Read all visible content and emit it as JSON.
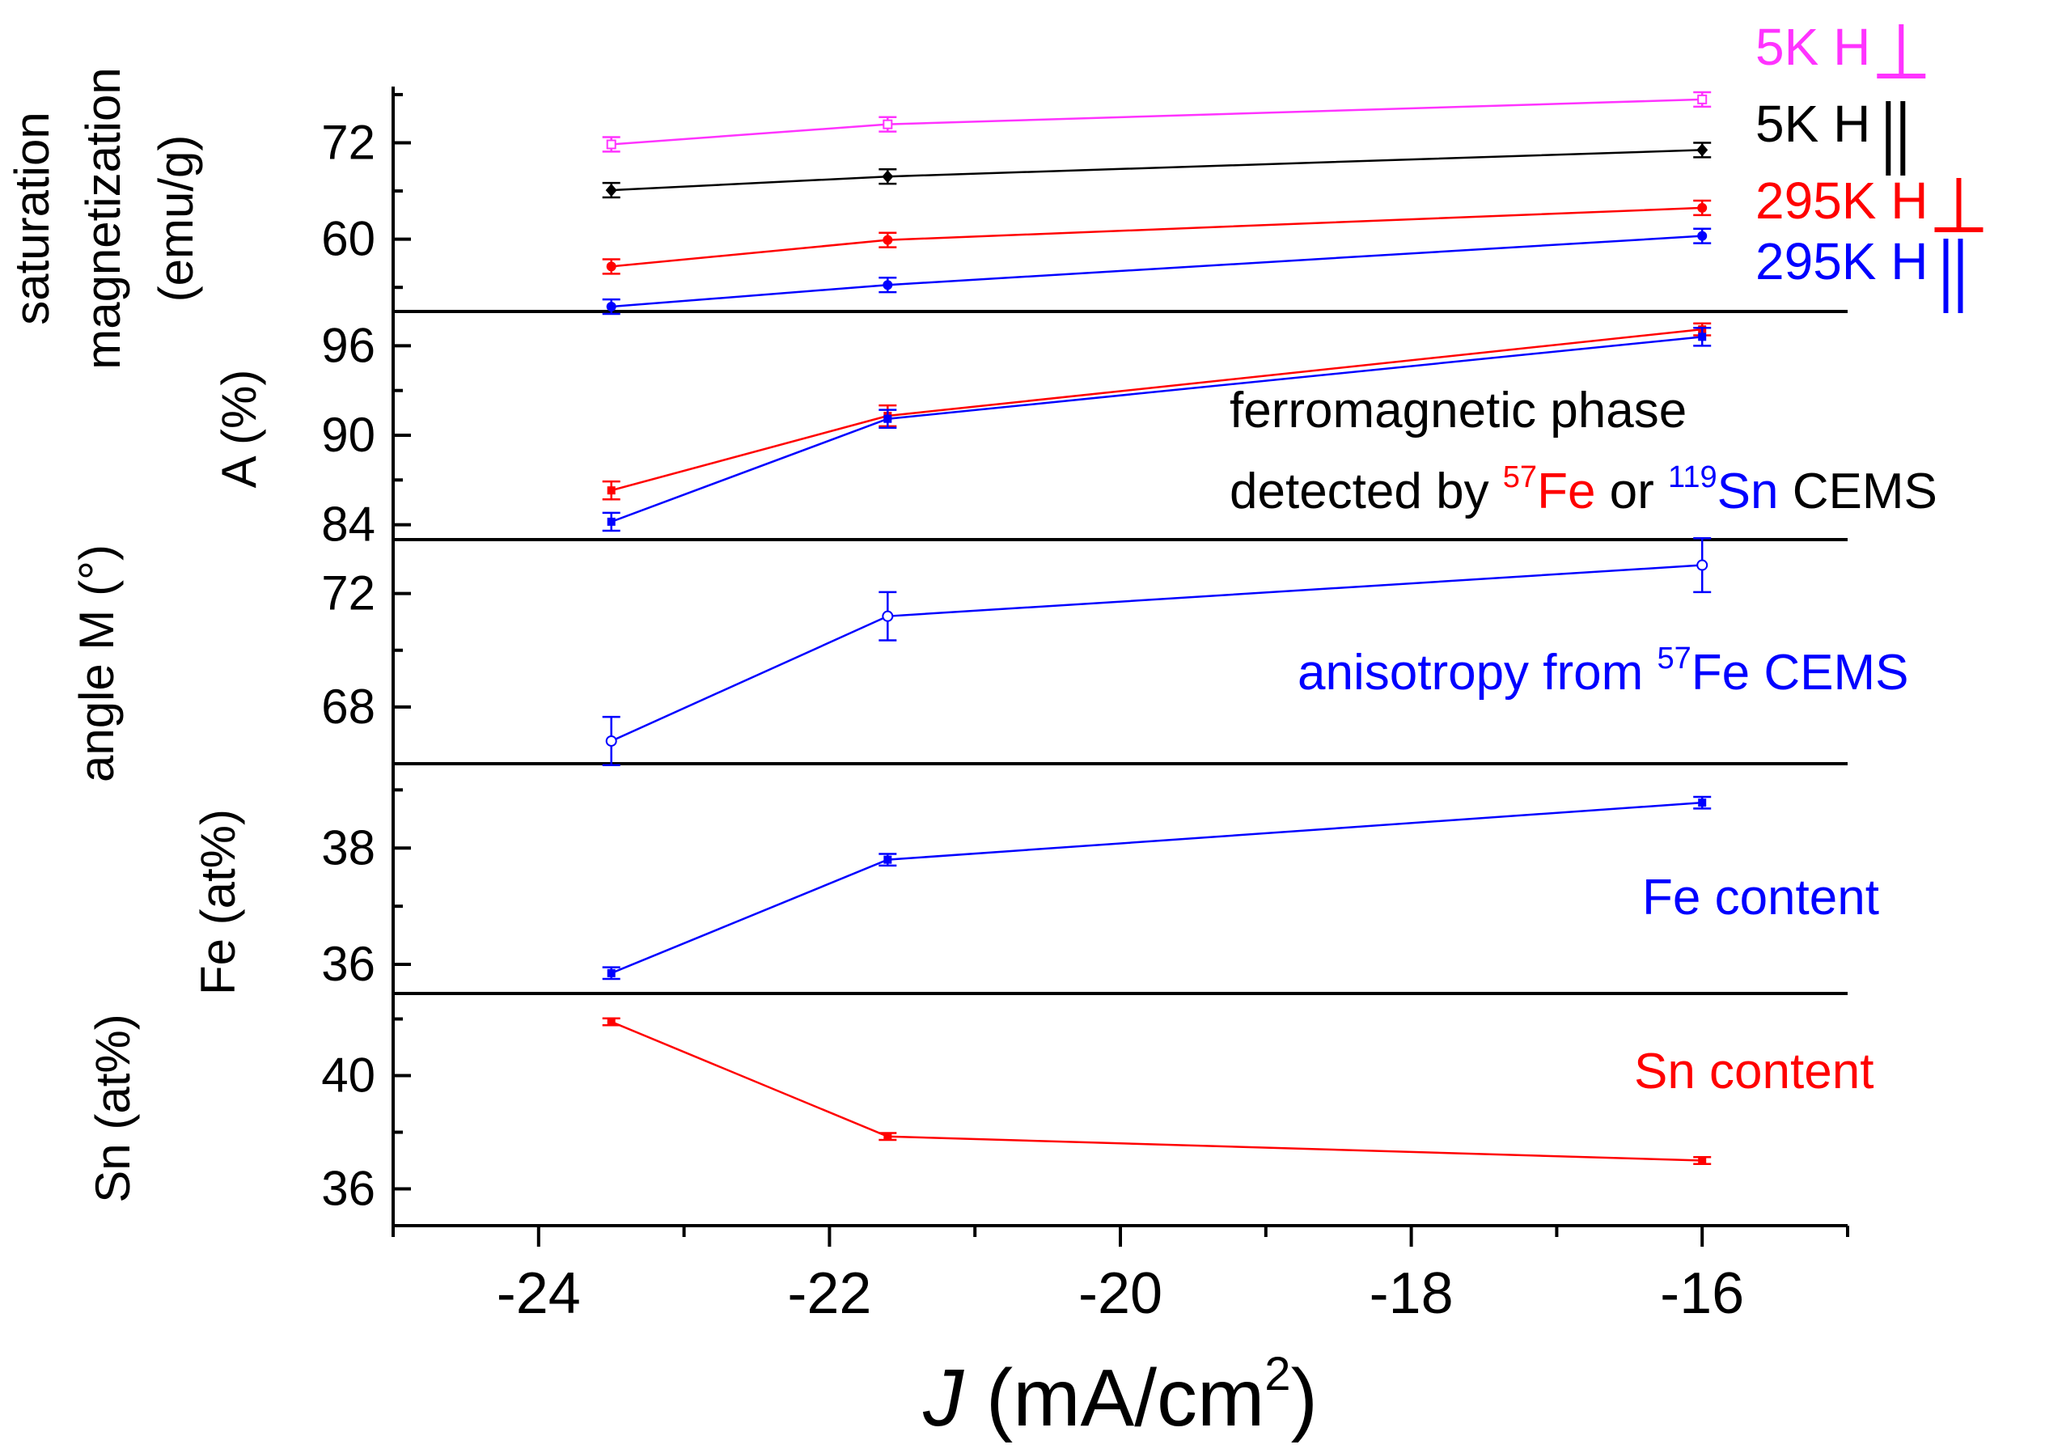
{
  "chart_data": {
    "type": "line",
    "x_axis": {
      "label_italic": "J",
      "label_rest": " (mA/cm",
      "label_sup": "2",
      "label_close": ")",
      "xlim": [
        -25,
        -15
      ],
      "major_ticks": [
        -24,
        -22,
        -20,
        -18,
        -16
      ],
      "tick_labels": [
        "-24",
        "-22",
        "-20",
        "-18",
        "-16"
      ]
    },
    "panels": [
      {
        "id": "sat",
        "ylabel_lines": [
          "saturation",
          "magnetization",
          "(emu/g)"
        ],
        "ylim": [
          51,
          79
        ],
        "yticks": [
          60,
          72
        ],
        "ytick_labels": [
          "60",
          "72"
        ],
        "series": [
          {
            "name": "5K H perpendicular",
            "color": "#ff33ff",
            "marker": "open-square",
            "x": [
              -23.5,
              -21.6,
              -16.0
            ],
            "y": [
              71.8,
              74.3,
              77.4
            ],
            "err": [
              0.9,
              0.9,
              0.9
            ]
          },
          {
            "name": "5K H parallel",
            "color": "#000000",
            "marker": "diamond",
            "x": [
              -23.5,
              -21.6,
              -16.0
            ],
            "y": [
              66.1,
              67.8,
              71.1
            ],
            "err": [
              0.9,
              0.9,
              0.9
            ]
          },
          {
            "name": "295K H perpendicular",
            "color": "#ff0000",
            "marker": "dot",
            "x": [
              -23.5,
              -21.6,
              -16.0
            ],
            "y": [
              56.6,
              59.9,
              63.9
            ],
            "err": [
              0.9,
              0.9,
              0.9
            ]
          },
          {
            "name": "295K H parallel",
            "color": "#0000ff",
            "marker": "dot",
            "x": [
              -23.5,
              -21.6,
              -16.0
            ],
            "y": [
              51.6,
              54.3,
              60.4
            ],
            "err": [
              0.9,
              0.9,
              0.9
            ]
          }
        ],
        "legend": [
          {
            "text": "5K H",
            "color": "#ff33ff",
            "symbol": "perp"
          },
          {
            "text": "5K H",
            "color": "#000000",
            "symbol": "par"
          },
          {
            "text": "295K H",
            "color": "#ff0000",
            "symbol": "perp"
          },
          {
            "text": "295K H",
            "color": "#0000ff",
            "symbol": "par"
          }
        ]
      },
      {
        "id": "A",
        "ylabel_lines": [
          "A (%)"
        ],
        "ylim": [
          83.0,
          98.3
        ],
        "yticks": [
          84,
          90,
          96
        ],
        "ytick_labels": [
          "84",
          "90",
          "96"
        ],
        "series": [
          {
            "name": "57Fe",
            "color": "#ff0000",
            "marker": "square",
            "x": [
              -23.5,
              -21.6,
              -16.0
            ],
            "y": [
              86.3,
              91.3,
              97.1
            ],
            "err": [
              0.6,
              0.7,
              0.4
            ]
          },
          {
            "name": "119Sn",
            "color": "#0000ff",
            "marker": "square",
            "x": [
              -23.5,
              -21.6,
              -16.0
            ],
            "y": [
              84.2,
              91.1,
              96.6
            ],
            "err": [
              0.6,
              0.6,
              0.6
            ]
          }
        ],
        "annotation": {
          "line1": "ferromagnetic phase",
          "line2_a": "detected by ",
          "sup_fe": "57",
          "fe": "Fe",
          "or": " or ",
          "sup_sn": "119",
          "sn": "Sn",
          "cems": " CEMS"
        }
      },
      {
        "id": "angle",
        "ylabel_lines": [
          "angle M (°)"
        ],
        "ylim": [
          66.0,
          73.9
        ],
        "yticks": [
          68,
          72
        ],
        "ytick_labels": [
          "68",
          "72"
        ],
        "series": [
          {
            "name": "angle",
            "color": "#0000ff",
            "marker": "open-circle",
            "x": [
              -23.5,
              -21.6,
              -16.0
            ],
            "y": [
              66.8,
              71.2,
              73.0
            ],
            "err": [
              0.85,
              0.85,
              0.95
            ]
          }
        ],
        "annotation": {
          "pre": "anisotropy from ",
          "sup": "57",
          "post": "Fe  CEMS"
        }
      },
      {
        "id": "fe",
        "ylabel_lines": [
          "Fe (at%)"
        ],
        "ylim": [
          35.5,
          39.45
        ],
        "yticks": [
          36,
          38
        ],
        "ytick_labels": [
          "36",
          "38"
        ],
        "series": [
          {
            "name": "Fe",
            "color": "#0000ff",
            "marker": "square",
            "x": [
              -23.5,
              -21.6,
              -16.0
            ],
            "y": [
              35.85,
              37.8,
              38.78
            ],
            "err": [
              0.1,
              0.1,
              0.1
            ]
          }
        ],
        "annotation": {
          "text": "Fe content"
        }
      },
      {
        "id": "sn",
        "ylabel_lines": [
          "Sn (at%)"
        ],
        "ylim": [
          34.7,
          42.9
        ],
        "yticks": [
          36,
          40
        ],
        "ytick_labels": [
          "36",
          "40"
        ],
        "series": [
          {
            "name": "Sn",
            "color": "#ff0000",
            "marker": "square",
            "x": [
              -23.5,
              -21.6,
              -16.0
            ],
            "y": [
              41.9,
              37.85,
              37.0
            ],
            "err": [
              0.12,
              0.12,
              0.12
            ]
          }
        ],
        "annotation": {
          "text": "Sn content"
        }
      }
    ]
  }
}
